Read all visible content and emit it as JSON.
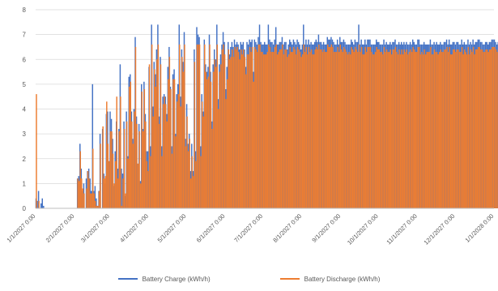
{
  "chart_data": {
    "type": "bar",
    "title": "",
    "xlabel": "",
    "ylabel": "",
    "ylim": [
      0,
      8
    ],
    "yticks": [
      "0",
      "1",
      "2",
      "3",
      "4",
      "5",
      "6",
      "7",
      "8"
    ],
    "xlim": [
      "2027-01-01",
      "2028-01-01"
    ],
    "xticks": [
      {
        "date": "2027-01-01",
        "label": "1/1/2027 0:00"
      },
      {
        "date": "2027-02-01",
        "label": "2/1/2027 0:00"
      },
      {
        "date": "2027-03-01",
        "label": "3/1/2027 0:00"
      },
      {
        "date": "2027-04-01",
        "label": "4/1/2027 0:00"
      },
      {
        "date": "2027-05-01",
        "label": "5/1/2027 0:00"
      },
      {
        "date": "2027-06-01",
        "label": "6/1/2027 0:00"
      },
      {
        "date": "2027-07-01",
        "label": "7/1/2027 0:00"
      },
      {
        "date": "2027-08-01",
        "label": "8/1/2027 0:00"
      },
      {
        "date": "2027-09-01",
        "label": "9/1/2027 0:00"
      },
      {
        "date": "2027-10-01",
        "label": "10/1/2027 0:00"
      },
      {
        "date": "2027-11-01",
        "label": "11/1/2027 0:00"
      },
      {
        "date": "2027-12-01",
        "label": "12/1/2027 0:00"
      },
      {
        "date": "2028-01-01",
        "label": "1/1/2028 0:00"
      }
    ],
    "grid": true,
    "legend_position": "bottom",
    "x_start": "2027-01-01",
    "x_step": "1 day",
    "series": [
      {
        "name": "Battery Charge (kWh/h)",
        "color": "#4472c4",
        "values": [
          0.4,
          0.3,
          0.7,
          0.0,
          0.2,
          0.4,
          0.1,
          0.0,
          0.0,
          0.0,
          0.0,
          0.0,
          0.0,
          0.0,
          0.0,
          0.0,
          0.0,
          0.0,
          0.0,
          0.0,
          0.0,
          0.0,
          0.0,
          0.0,
          0.0,
          0.0,
          0.0,
          0.0,
          0.0,
          0.0,
          0.0,
          0.0,
          0.0,
          1.2,
          1.3,
          2.6,
          1.6,
          0.7,
          1.0,
          0.0,
          1.2,
          1.5,
          1.6,
          1.2,
          0.7,
          5.0,
          0.7,
          0.9,
          0.4,
          0.1,
          0.7,
          3.0,
          0.0,
          3.2,
          1.4,
          1.0,
          3.8,
          3.9,
          1.9,
          3.9,
          3.6,
          2.8,
          0.9,
          2.3,
          3.5,
          1.6,
          3.2,
          5.8,
          1.6,
          1.4,
          3.5,
          0.5,
          3.9,
          2.1,
          5.3,
          5.4,
          3.9,
          2.8,
          4.0,
          6.9,
          3.7,
          1.8,
          3.4,
          1.1,
          5.0,
          3.2,
          5.1,
          3.8,
          2.3,
          2.3,
          5.7,
          2.5,
          7.4,
          4.1,
          5.9,
          5.4,
          6.4,
          7.4,
          3.7,
          6.1,
          2.5,
          4.5,
          4.6,
          4.5,
          3.8,
          5.7,
          6.5,
          4.9,
          2.5,
          5.4,
          5.6,
          3.0,
          4.6,
          5.0,
          7.4,
          4.5,
          6.4,
          5.9,
          7.1,
          2.8,
          4.2,
          2.6,
          3.0,
          1.5,
          2.6,
          1.5,
          6.4,
          2.3,
          7.3,
          7.0,
          6.9,
          2.5,
          4.6,
          3.9,
          6.8,
          5.8,
          5.5,
          5.7,
          7.0,
          5.5,
          3.5,
          5.8,
          6.4,
          6.0,
          7.4,
          4.4,
          5.8,
          6.2,
          6.6,
          7.1,
          6.7,
          4.8,
          5.7,
          6.7,
          6.2,
          6.5,
          6.7,
          6.5,
          6.8,
          6.6,
          6.7,
          6.6,
          6.4,
          6.7,
          6.6,
          6.7,
          6.4,
          5.7,
          6.7,
          6.6,
          6.8,
          6.7,
          6.8,
          5.5,
          6.8,
          6.7,
          6.6,
          6.9,
          7.4,
          6.7,
          6.6,
          6.6,
          6.7,
          6.6,
          6.6,
          7.4,
          6.8,
          6.7,
          6.7,
          6.6,
          6.8,
          7.3,
          6.6,
          6.6,
          6.7,
          6.7,
          6.9,
          6.6,
          6.7,
          6.7,
          6.4,
          6.6,
          6.8,
          6.7,
          6.6,
          6.8,
          6.7,
          6.6,
          6.8,
          6.7,
          6.6,
          6.4,
          6.6,
          7.4,
          6.6,
          6.8,
          6.6,
          6.8,
          6.6,
          6.7,
          6.6,
          6.6,
          6.7,
          6.8,
          6.7,
          7.0,
          6.7,
          6.7,
          6.6,
          6.7,
          6.6,
          6.6,
          6.9,
          6.8,
          6.8,
          6.9,
          6.8,
          6.7,
          6.6,
          6.6,
          6.8,
          6.6,
          6.9,
          6.7,
          6.7,
          6.8,
          6.7,
          6.6,
          6.6,
          6.6,
          6.6,
          6.8,
          6.7,
          6.6,
          6.8,
          6.7,
          6.7,
          7.4,
          6.6,
          6.8,
          6.6,
          6.6,
          6.8,
          6.6,
          6.8,
          6.8,
          6.8,
          6.6,
          6.6,
          6.6,
          6.6,
          6.8,
          6.7,
          6.7,
          6.6,
          6.6,
          6.6,
          6.8,
          6.6,
          6.7,
          6.6,
          6.6,
          6.7,
          6.6,
          6.7,
          6.7,
          6.8,
          6.6,
          6.6,
          6.7,
          6.6,
          6.7,
          6.6,
          6.7,
          6.6,
          6.7,
          6.6,
          6.6,
          6.7,
          6.6,
          6.8,
          6.7,
          6.6,
          6.6,
          6.8,
          6.8,
          6.6,
          6.6,
          6.6,
          6.7,
          6.6,
          6.6,
          6.6,
          6.6,
          6.8,
          6.6,
          6.6,
          6.7,
          6.6,
          6.7,
          6.6,
          6.6,
          6.7,
          6.6,
          6.6,
          6.7,
          6.7,
          6.8,
          6.6,
          6.8,
          6.6,
          6.6,
          6.7,
          6.7,
          6.6,
          6.7,
          6.7,
          6.6,
          6.6,
          6.8,
          6.6,
          6.7,
          6.6,
          6.6,
          6.8,
          6.6,
          6.7,
          6.6,
          6.8,
          6.6,
          6.7,
          6.7,
          6.8,
          6.8,
          6.7,
          6.7,
          6.6,
          6.6,
          6.7,
          6.7,
          6.6,
          6.7,
          6.7,
          6.8,
          6.8,
          6.8,
          6.7,
          6.6,
          6.7,
          6.7,
          6.6,
          6.7,
          7.4,
          6.6,
          6.6,
          6.6,
          6.8,
          6.6,
          6.6,
          6.6,
          6.7,
          6.6,
          6.7,
          6.6,
          6.7,
          6.6,
          6.7,
          6.7,
          6.8,
          6.6,
          6.6,
          6.6,
          6.8,
          6.6,
          6.7,
          6.7,
          6.6,
          6.6,
          6.6,
          6.8,
          6.8,
          6.8,
          6.7,
          6.6,
          6.7,
          6.6,
          6.7,
          6.8,
          6.6,
          6.7,
          6.7,
          6.6,
          6.6,
          6.6,
          6.6,
          6.6,
          6.7,
          6.6,
          6.6,
          6.6,
          6.7,
          6.6,
          6.6,
          6.6,
          6.7,
          6.7,
          6.6,
          6.6,
          6.6,
          6.8,
          6.6,
          6.6,
          6.6,
          6.6,
          6.7,
          6.7,
          6.8,
          6.6,
          6.6,
          6.6,
          6.8,
          6.6,
          6.6,
          6.8,
          6.6,
          6.6,
          6.8,
          6.6,
          6.6,
          6.6,
          6.6,
          6.7,
          6.6,
          6.6,
          6.6,
          6.6,
          6.7,
          6.6,
          6.6,
          6.7,
          6.6,
          6.6,
          6.6,
          6.7,
          6.7,
          6.6,
          6.6,
          6.6,
          6.7,
          6.6,
          6.6,
          6.6,
          6.6,
          6.6,
          6.6,
          6.6,
          6.6,
          6.6,
          6.6,
          6.6,
          6.6,
          6.6,
          6.6,
          6.6,
          6.6,
          6.6,
          6.6,
          6.6,
          6.6,
          6.6,
          6.6,
          6.6,
          6.6,
          6.6,
          6.6,
          6.6,
          6.6,
          6.6,
          6.6,
          6.6,
          6.6,
          6.6,
          6.6,
          6.6,
          6.6,
          6.6,
          6.6,
          6.6,
          6.6,
          6.6,
          6.6,
          6.6,
          6.6,
          6.6,
          6.6,
          6.6,
          6.6,
          6.6,
          6.6,
          6.6,
          6.6,
          6.6,
          6.6,
          6.6,
          6.6,
          6.6,
          6.6,
          6.6,
          6.6,
          6.6,
          6.6,
          6.6,
          6.6,
          6.6,
          6.6,
          6.6
        ]
      },
      {
        "name": "Battery Discharge (kWh/h)",
        "color": "#ed7d31",
        "values": [
          4.6,
          0.0,
          0.3,
          0.0,
          0.0,
          0.0,
          0.0,
          0.0,
          0.0,
          0.0,
          0.0,
          0.0,
          0.0,
          0.0,
          0.0,
          0.0,
          0.0,
          0.0,
          0.0,
          0.0,
          0.0,
          0.0,
          0.0,
          0.0,
          0.0,
          0.0,
          0.0,
          0.0,
          0.0,
          0.0,
          0.0,
          0.0,
          0.0,
          1.2,
          1.1,
          2.3,
          1.2,
          0.8,
          0.6,
          0.0,
          0.8,
          1.5,
          1.2,
          0.6,
          0.6,
          2.4,
          0.6,
          0.3,
          0.1,
          0.1,
          0.7,
          2.6,
          0.0,
          3.3,
          1.2,
          1.3,
          4.3,
          2.6,
          1.9,
          3.1,
          3.1,
          2.2,
          1.0,
          1.9,
          4.5,
          1.2,
          3.1,
          4.5,
          0.1,
          1.2,
          3.2,
          0.6,
          3.5,
          2.0,
          4.9,
          5.1,
          3.5,
          2.6,
          3.9,
          6.5,
          3.4,
          1.8,
          3.1,
          1.0,
          4.7,
          3.1,
          4.8,
          3.5,
          1.9,
          1.5,
          5.8,
          2.1,
          6.6,
          3.7,
          5.6,
          4.9,
          6.0,
          6.6,
          3.4,
          5.8,
          2.1,
          4.2,
          4.5,
          4.2,
          3.5,
          5.2,
          6.1,
          4.8,
          2.2,
          5.2,
          5.2,
          2.9,
          4.3,
          4.6,
          6.6,
          4.1,
          6.1,
          5.5,
          6.6,
          2.5,
          3.7,
          2.3,
          2.8,
          1.2,
          2.1,
          1.3,
          5.9,
          1.9,
          6.6,
          6.6,
          6.6,
          2.1,
          4.3,
          3.7,
          6.6,
          5.5,
          5.2,
          5.3,
          6.6,
          5.1,
          3.2,
          5.5,
          6.0,
          5.7,
          6.6,
          4.0,
          5.5,
          5.8,
          6.4,
          6.6,
          6.2,
          4.4,
          5.2,
          6.4,
          6.0,
          6.1,
          6.4,
          6.1,
          6.5,
          6.4,
          6.5,
          6.3,
          6.0,
          6.4,
          6.2,
          6.4,
          6.1,
          5.4,
          6.2,
          6.2,
          6.5,
          6.3,
          6.5,
          5.1,
          6.5,
          6.4,
          6.3,
          6.6,
          6.6,
          6.3,
          6.3,
          6.2,
          6.2,
          6.2,
          6.3,
          6.6,
          6.5,
          6.3,
          6.3,
          6.3,
          6.5,
          6.6,
          6.2,
          6.3,
          6.4,
          6.4,
          6.6,
          6.2,
          6.4,
          6.4,
          6.1,
          6.2,
          6.5,
          6.3,
          6.3,
          6.5,
          6.4,
          6.2,
          6.5,
          6.4,
          6.3,
          6.1,
          6.2,
          6.6,
          6.3,
          6.5,
          6.2,
          6.5,
          6.3,
          6.4,
          6.2,
          6.2,
          6.4,
          6.5,
          6.4,
          6.6,
          6.4,
          6.4,
          6.3,
          6.4,
          6.3,
          6.3,
          6.6,
          6.5,
          6.5,
          6.6,
          6.5,
          6.3,
          6.3,
          6.3,
          6.5,
          6.3,
          6.6,
          6.4,
          6.3,
          6.5,
          6.4,
          6.3,
          6.2,
          6.3,
          6.2,
          6.5,
          6.4,
          6.3,
          6.5,
          6.4,
          6.3,
          6.6,
          6.3,
          6.5,
          6.2,
          6.2,
          6.5,
          6.3,
          6.5,
          6.5,
          6.5,
          6.3,
          6.2,
          6.2,
          6.3,
          6.5,
          6.4,
          6.4,
          6.3,
          6.3,
          6.2,
          6.5,
          6.3,
          6.4,
          6.3,
          6.3,
          6.4,
          6.2,
          6.4,
          6.4,
          6.5,
          6.3,
          6.2,
          6.4,
          6.2,
          6.4,
          6.2,
          6.4,
          6.3,
          6.4,
          6.2,
          6.3,
          6.4,
          6.3,
          6.5,
          6.4,
          6.3,
          6.3,
          6.5,
          6.5,
          6.2,
          6.3,
          6.2,
          6.4,
          6.2,
          6.3,
          6.3,
          6.3,
          6.5,
          6.2,
          6.2,
          6.4,
          6.3,
          6.3,
          6.2,
          6.3,
          6.4,
          6.3,
          6.3,
          6.4,
          6.4,
          6.5,
          6.3,
          6.5,
          6.2,
          6.2,
          6.4,
          6.4,
          6.3,
          6.4,
          6.4,
          6.3,
          6.3,
          6.5,
          6.2,
          6.4,
          6.3,
          6.2,
          6.5,
          6.2,
          6.4,
          6.3,
          6.5,
          6.2,
          6.4,
          6.4,
          6.5,
          6.5,
          6.4,
          6.4,
          6.3,
          6.3,
          6.4,
          6.4,
          6.3,
          6.4,
          6.4,
          6.5,
          6.5,
          6.5,
          6.4,
          6.3,
          6.4,
          6.4,
          6.3,
          6.4,
          6.6,
          6.3,
          6.2,
          6.3,
          6.5,
          6.3,
          6.3,
          6.2,
          6.4,
          6.2,
          6.4,
          6.3,
          6.4,
          6.3,
          6.4,
          6.4,
          6.5,
          6.3,
          6.2,
          6.3,
          6.5,
          6.3,
          6.4,
          6.4,
          6.3,
          6.2,
          6.2,
          6.5,
          6.5,
          6.5,
          6.4,
          6.3,
          6.4,
          6.3,
          6.4,
          6.5,
          6.3,
          6.4,
          6.4,
          6.3,
          6.3,
          6.3,
          6.3,
          6.3,
          6.4,
          6.3,
          6.3,
          6.3,
          6.4,
          6.3,
          6.3,
          6.3,
          6.4,
          6.4,
          6.3,
          6.3,
          6.3,
          6.5,
          6.3,
          6.3,
          6.3,
          6.3,
          6.4,
          6.4,
          6.5,
          6.3,
          6.3,
          6.3,
          6.5,
          6.3,
          6.3,
          6.5,
          6.3,
          6.3,
          6.5,
          6.3,
          6.3,
          6.3,
          6.3,
          6.4,
          6.3,
          6.3,
          6.3,
          6.3,
          6.4,
          6.3,
          6.3,
          6.4,
          6.3,
          6.3,
          6.3,
          6.4,
          6.4,
          6.3,
          6.3,
          6.3,
          6.4,
          6.3,
          6.3,
          6.3,
          6.3,
          6.3,
          6.3,
          6.3,
          6.3,
          6.3,
          6.3,
          6.3,
          6.3,
          6.3,
          6.3,
          6.3,
          6.3,
          6.3,
          6.3,
          6.3,
          6.3,
          6.3,
          6.3,
          6.3,
          6.3,
          6.3,
          6.3,
          6.3,
          6.3,
          6.3,
          6.3,
          6.3,
          6.3,
          6.3,
          6.3,
          6.3,
          6.3,
          6.3,
          6.3,
          6.3,
          6.3,
          6.3,
          6.3,
          6.3,
          6.3,
          6.3,
          6.3,
          6.3,
          6.3,
          6.3,
          6.3,
          6.3,
          6.3,
          6.3,
          6.3,
          6.3,
          6.3,
          6.3,
          6.3,
          6.3,
          6.3,
          6.3,
          6.3,
          6.3,
          6.3,
          6.3,
          6.3,
          6.3,
          6.3
        ]
      }
    ]
  }
}
